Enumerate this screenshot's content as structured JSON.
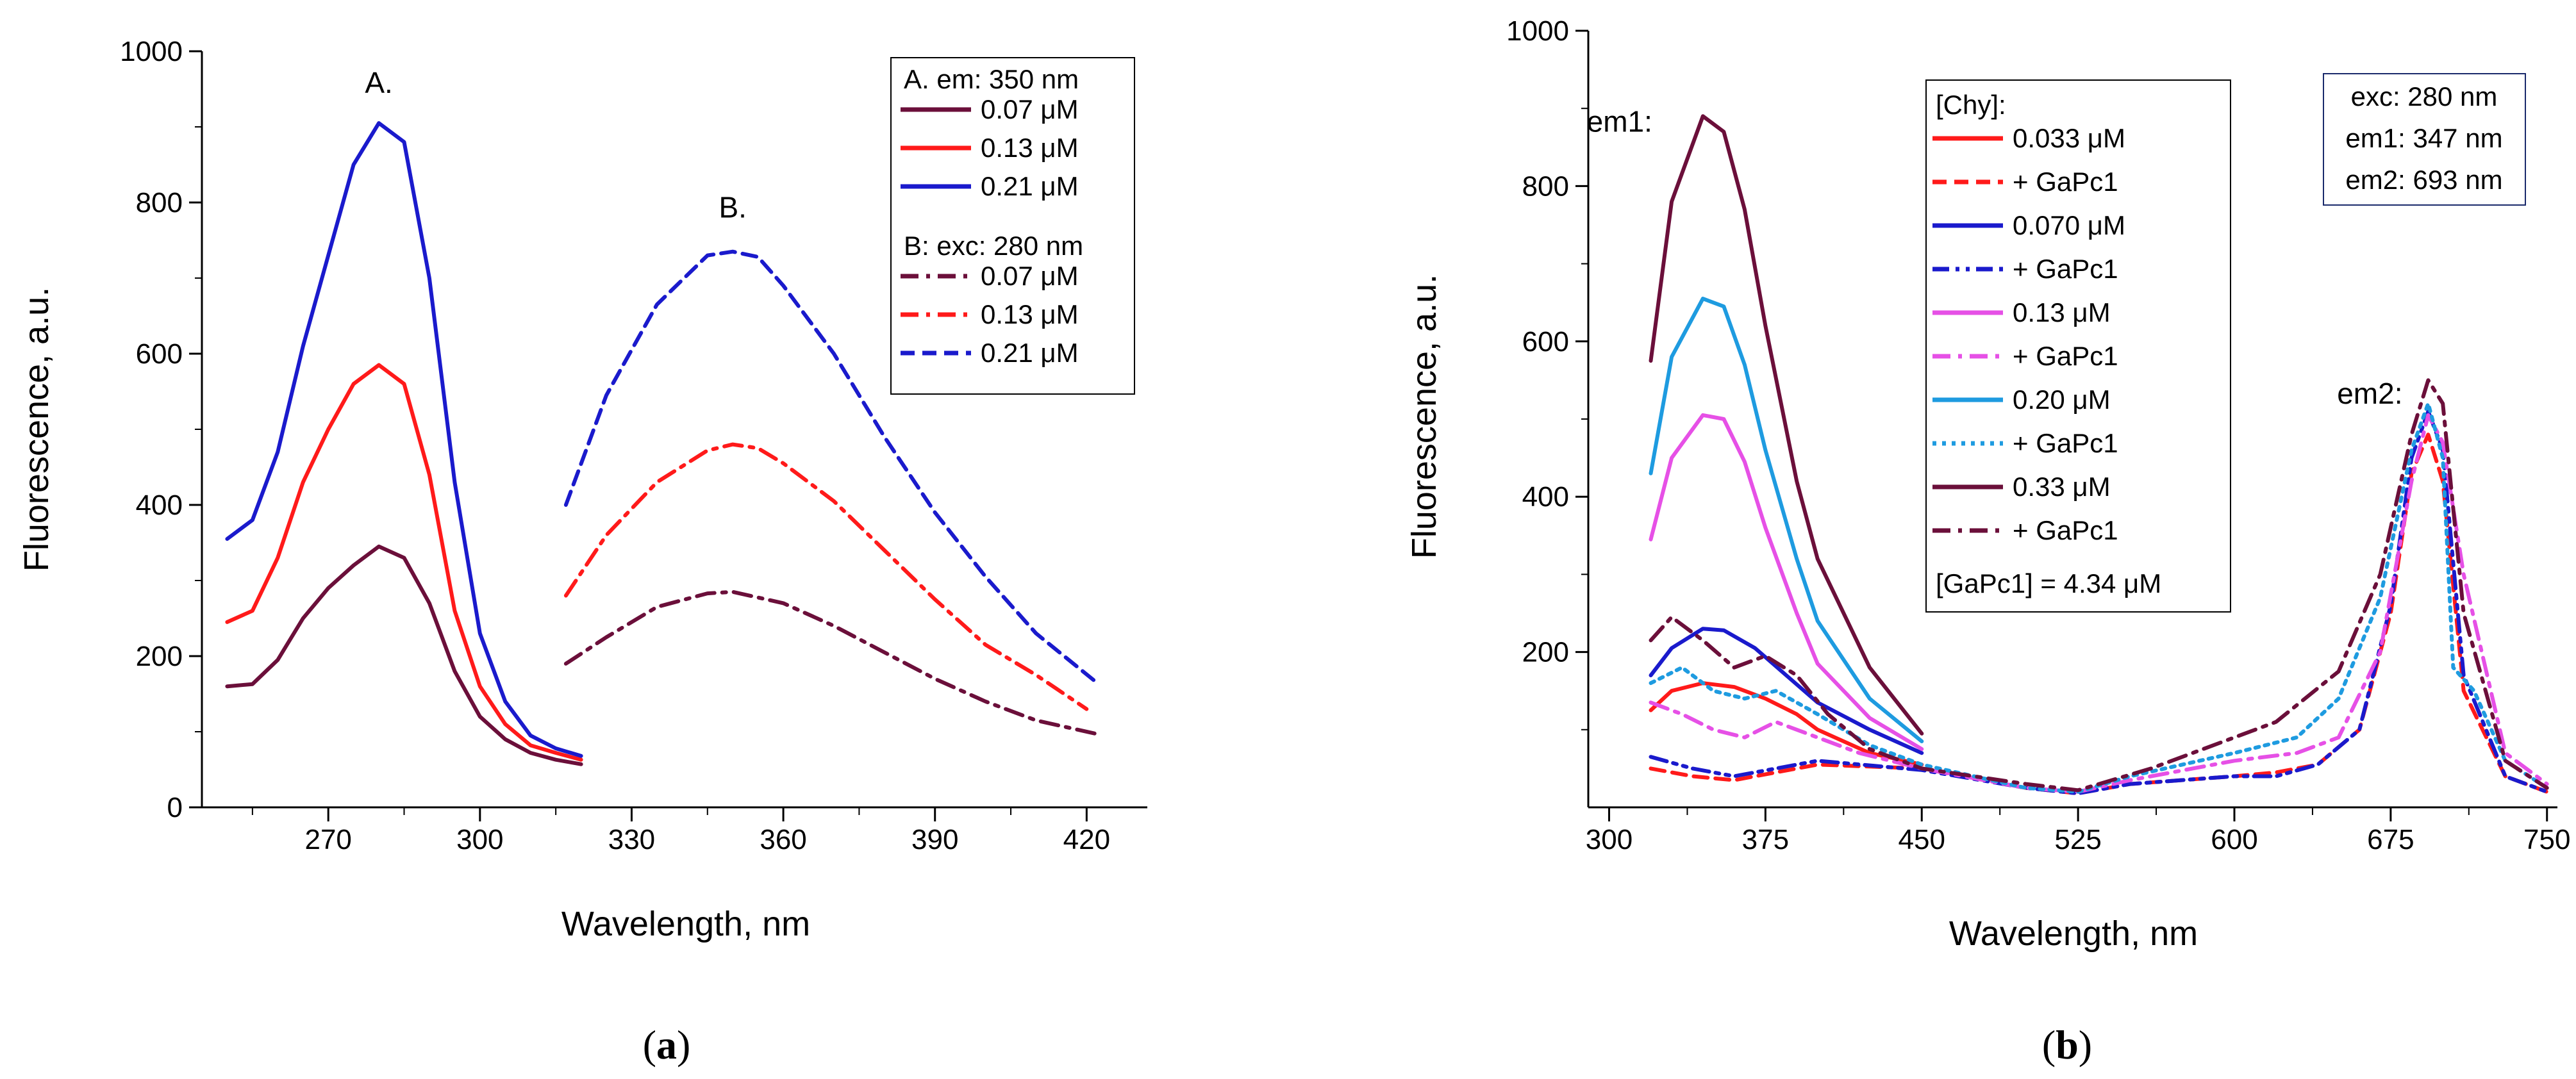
{
  "chart_data": [
    {
      "id": "a",
      "type": "line",
      "caption_letter": "a",
      "xlabel": "Wavelength, nm",
      "ylabel": "Fluorescence, a.u.",
      "xlim": [
        245,
        432
      ],
      "ylim": [
        0,
        1000
      ],
      "xticks": [
        270,
        300,
        330,
        360,
        390,
        420
      ],
      "yticks": [
        0,
        200,
        400,
        600,
        800,
        1000
      ],
      "legend": {
        "placement": "top-right",
        "header_a": "A. em: 350 nm",
        "header_b": "B: exc: 280 nm"
      },
      "annotations": [
        {
          "text": "A.",
          "x": 280,
          "y": 945
        },
        {
          "text": "B.",
          "x": 350,
          "y": 780
        }
      ],
      "series": [
        {
          "name": "0.07 μM",
          "group": "A",
          "color": "#6b0f3a",
          "dash": "solid",
          "points": [
            [
              250,
              160
            ],
            [
              255,
              163
            ],
            [
              260,
              195
            ],
            [
              265,
              250
            ],
            [
              270,
              290
            ],
            [
              275,
              320
            ],
            [
              280,
              345
            ],
            [
              285,
              330
            ],
            [
              290,
              270
            ],
            [
              295,
              180
            ],
            [
              300,
              120
            ],
            [
              305,
              90
            ],
            [
              310,
              72
            ],
            [
              315,
              63
            ],
            [
              320,
              57
            ]
          ]
        },
        {
          "name": "0.13 μM",
          "group": "A",
          "color": "#ff1a1a",
          "dash": "solid",
          "points": [
            [
              250,
              245
            ],
            [
              255,
              260
            ],
            [
              260,
              330
            ],
            [
              265,
              430
            ],
            [
              270,
              500
            ],
            [
              275,
              560
            ],
            [
              280,
              585
            ],
            [
              285,
              560
            ],
            [
              290,
              440
            ],
            [
              295,
              260
            ],
            [
              300,
              160
            ],
            [
              305,
              110
            ],
            [
              310,
              82
            ],
            [
              315,
              72
            ],
            [
              320,
              63
            ]
          ]
        },
        {
          "name": "0.21 μM",
          "group": "A",
          "color": "#1a1acc",
          "dash": "solid",
          "points": [
            [
              250,
              355
            ],
            [
              255,
              380
            ],
            [
              260,
              470
            ],
            [
              265,
              610
            ],
            [
              270,
              730
            ],
            [
              275,
              850
            ],
            [
              280,
              905
            ],
            [
              285,
              880
            ],
            [
              290,
              700
            ],
            [
              295,
              430
            ],
            [
              300,
              230
            ],
            [
              305,
              140
            ],
            [
              310,
              95
            ],
            [
              315,
              78
            ],
            [
              320,
              68
            ]
          ]
        },
        {
          "name": "0.07 μM",
          "group": "B",
          "color": "#6b0f3a",
          "dash": "dashdot",
          "points": [
            [
              317,
              190
            ],
            [
              325,
              225
            ],
            [
              335,
              265
            ],
            [
              345,
              283
            ],
            [
              350,
              285
            ],
            [
              360,
              270
            ],
            [
              370,
              240
            ],
            [
              380,
              205
            ],
            [
              390,
              170
            ],
            [
              400,
              140
            ],
            [
              410,
              115
            ],
            [
              422,
              97
            ]
          ]
        },
        {
          "name": "0.13 μM",
          "group": "B",
          "color": "#ff1a1a",
          "dash": "dashdot",
          "points": [
            [
              317,
              280
            ],
            [
              325,
              360
            ],
            [
              335,
              430
            ],
            [
              345,
              472
            ],
            [
              350,
              480
            ],
            [
              355,
              475
            ],
            [
              360,
              455
            ],
            [
              370,
              405
            ],
            [
              380,
              340
            ],
            [
              390,
              275
            ],
            [
              400,
              215
            ],
            [
              410,
              175
            ],
            [
              420,
              130
            ]
          ]
        },
        {
          "name": "0.21 μM",
          "group": "B",
          "color": "#1a1acc",
          "dash": "dash",
          "points": [
            [
              317,
              400
            ],
            [
              325,
              545
            ],
            [
              335,
              665
            ],
            [
              345,
              730
            ],
            [
              350,
              735
            ],
            [
              355,
              728
            ],
            [
              360,
              690
            ],
            [
              370,
              600
            ],
            [
              380,
              490
            ],
            [
              390,
              390
            ],
            [
              400,
              305
            ],
            [
              410,
              230
            ],
            [
              422,
              165
            ]
          ]
        }
      ]
    },
    {
      "id": "b",
      "type": "line",
      "caption_letter": "b",
      "xlabel": "Wavelength, nm",
      "ylabel": "Fluorescence, a.u.",
      "xlim": [
        290,
        755
      ],
      "ylim": [
        0,
        1000
      ],
      "xticks": [
        300,
        375,
        450,
        525,
        600,
        675,
        750
      ],
      "yticks": [
        200,
        400,
        600,
        800,
        1000
      ],
      "legend": {
        "placement": "top-center",
        "header": "[Chy]:",
        "footer": "[GaPc1] = 4.34 μM"
      },
      "info_box": [
        "exc: 280 nm",
        "em1: 347 nm",
        "em2: 693 nm"
      ],
      "annotations": [
        {
          "text": "em1:",
          "x": 305,
          "y": 870
        },
        {
          "text": "em2:",
          "x": 665,
          "y": 520
        }
      ],
      "series": [
        {
          "name": "0.033 μM",
          "color": "#ff1a1a",
          "dash": "solid",
          "points": [
            [
              320,
              125
            ],
            [
              330,
              150
            ],
            [
              345,
              160
            ],
            [
              360,
              155
            ],
            [
              375,
              140
            ],
            [
              390,
              120
            ],
            [
              400,
              100
            ],
            [
              425,
              70
            ],
            [
              450,
              55
            ]
          ]
        },
        {
          "name": "+  GaPc1",
          "color": "#ff1a1a",
          "dash": "dash",
          "points": [
            [
              320,
              50
            ],
            [
              340,
              40
            ],
            [
              360,
              35
            ],
            [
              400,
              55
            ],
            [
              450,
              50
            ],
            [
              500,
              25
            ],
            [
              525,
              18
            ],
            [
              550,
              30
            ],
            [
              600,
              40
            ],
            [
              620,
              45
            ],
            [
              640,
              55
            ],
            [
              660,
              100
            ],
            [
              675,
              250
            ],
            [
              685,
              430
            ],
            [
              693,
              480
            ],
            [
              700,
              420
            ],
            [
              710,
              150
            ],
            [
              730,
              40
            ],
            [
              750,
              20
            ]
          ]
        },
        {
          "name": "0.070 μM",
          "color": "#1a1acc",
          "dash": "solid",
          "points": [
            [
              320,
              170
            ],
            [
              330,
              205
            ],
            [
              345,
              230
            ],
            [
              355,
              228
            ],
            [
              370,
              205
            ],
            [
              385,
              170
            ],
            [
              400,
              135
            ],
            [
              425,
              100
            ],
            [
              450,
              70
            ]
          ]
        },
        {
          "name": "+ GaPc1",
          "color": "#1a1acc",
          "dash": "dashdotdot",
          "points": [
            [
              320,
              65
            ],
            [
              340,
              50
            ],
            [
              360,
              40
            ],
            [
              400,
              60
            ],
            [
              450,
              48
            ],
            [
              500,
              25
            ],
            [
              525,
              18
            ],
            [
              550,
              30
            ],
            [
              600,
              40
            ],
            [
              620,
              40
            ],
            [
              640,
              55
            ],
            [
              660,
              100
            ],
            [
              675,
              260
            ],
            [
              685,
              450
            ],
            [
              693,
              510
            ],
            [
              700,
              460
            ],
            [
              710,
              170
            ],
            [
              730,
              40
            ],
            [
              750,
              20
            ]
          ]
        },
        {
          "name": "0.13 μM",
          "color": "#e650e6",
          "dash": "solid",
          "points": [
            [
              320,
              345
            ],
            [
              330,
              450
            ],
            [
              345,
              505
            ],
            [
              355,
              500
            ],
            [
              365,
              445
            ],
            [
              375,
              360
            ],
            [
              390,
              250
            ],
            [
              400,
              185
            ],
            [
              425,
              115
            ],
            [
              450,
              75
            ]
          ]
        },
        {
          "name": "+ GaPc1",
          "color": "#e650e6",
          "dash": "dashdot",
          "points": [
            [
              320,
              135
            ],
            [
              335,
              120
            ],
            [
              350,
              100
            ],
            [
              365,
              90
            ],
            [
              380,
              110
            ],
            [
              395,
              95
            ],
            [
              420,
              70
            ],
            [
              450,
              50
            ],
            [
              500,
              25
            ],
            [
              525,
              20
            ],
            [
              550,
              35
            ],
            [
              600,
              60
            ],
            [
              630,
              70
            ],
            [
              650,
              90
            ],
            [
              670,
              200
            ],
            [
              685,
              420
            ],
            [
              693,
              505
            ],
            [
              700,
              470
            ],
            [
              710,
              300
            ],
            [
              730,
              70
            ],
            [
              750,
              30
            ]
          ]
        },
        {
          "name": "0.20 μM",
          "color": "#1e9be0",
          "dash": "solid",
          "points": [
            [
              320,
              430
            ],
            [
              330,
              580
            ],
            [
              345,
              655
            ],
            [
              355,
              645
            ],
            [
              365,
              570
            ],
            [
              375,
              460
            ],
            [
              390,
              320
            ],
            [
              400,
              240
            ],
            [
              425,
              140
            ],
            [
              450,
              85
            ]
          ]
        },
        {
          "name": "+ GaPc1",
          "color": "#1e9be0",
          "dash": "dot",
          "points": [
            [
              320,
              160
            ],
            [
              335,
              180
            ],
            [
              350,
              150
            ],
            [
              365,
              140
            ],
            [
              380,
              150
            ],
            [
              400,
              120
            ],
            [
              425,
              80
            ],
            [
              450,
              55
            ],
            [
              500,
              25
            ],
            [
              525,
              20
            ],
            [
              550,
              40
            ],
            [
              600,
              70
            ],
            [
              630,
              90
            ],
            [
              650,
              140
            ],
            [
              670,
              270
            ],
            [
              685,
              460
            ],
            [
              693,
              520
            ],
            [
              700,
              450
            ],
            [
              705,
              180
            ],
            [
              715,
              150
            ],
            [
              730,
              60
            ],
            [
              750,
              25
            ]
          ]
        },
        {
          "name": "0.33 μM",
          "color": "#6b0f3a",
          "dash": "solid",
          "points": [
            [
              320,
              575
            ],
            [
              330,
              780
            ],
            [
              345,
              890
            ],
            [
              355,
              870
            ],
            [
              365,
              770
            ],
            [
              375,
              620
            ],
            [
              390,
              420
            ],
            [
              400,
              320
            ],
            [
              425,
              180
            ],
            [
              450,
              95
            ]
          ]
        },
        {
          "name": "+ GaPc1",
          "color": "#6b0f3a",
          "dash": "dashdot",
          "points": [
            [
              320,
              215
            ],
            [
              330,
              245
            ],
            [
              345,
              215
            ],
            [
              360,
              180
            ],
            [
              375,
              195
            ],
            [
              390,
              170
            ],
            [
              405,
              120
            ],
            [
              425,
              75
            ],
            [
              450,
              50
            ],
            [
              500,
              30
            ],
            [
              525,
              22
            ],
            [
              560,
              50
            ],
            [
              600,
              90
            ],
            [
              620,
              110
            ],
            [
              650,
              175
            ],
            [
              670,
              300
            ],
            [
              685,
              480
            ],
            [
              693,
              550
            ],
            [
              700,
              520
            ],
            [
              710,
              250
            ],
            [
              730,
              60
            ],
            [
              750,
              25
            ]
          ]
        }
      ]
    }
  ]
}
